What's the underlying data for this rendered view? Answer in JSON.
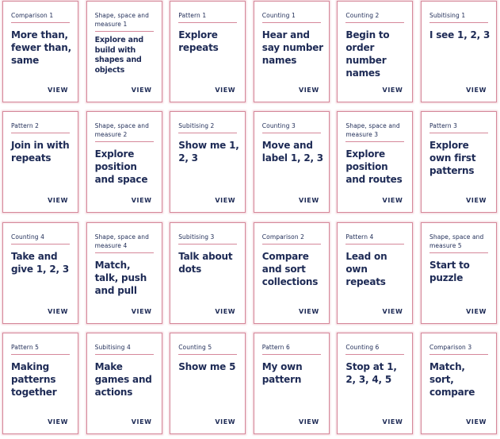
{
  "cards": [
    {
      "category": "Comparison 1",
      "title": "More than, fewer than, same",
      "action": "VIEW"
    },
    {
      "category": "Shape, space and measure 1",
      "title": "Explore and build with shapes and objects",
      "action": "VIEW"
    },
    {
      "category": "Pattern 1",
      "title": "Explore repeats",
      "action": "VIEW"
    },
    {
      "category": "Counting 1",
      "title": "Hear and say number names",
      "action": "VIEW"
    },
    {
      "category": "Counting 2",
      "title": "Begin to order number names",
      "action": "VIEW"
    },
    {
      "category": "Subitising 1",
      "title": "I see 1, 2, 3",
      "action": "VIEW"
    },
    {
      "category": "Pattern 2",
      "title": "Join in with repeats",
      "action": "VIEW"
    },
    {
      "category": "Shape, space and measure 2",
      "title": "Explore position and space",
      "action": "VIEW"
    },
    {
      "category": "Subitising 2",
      "title": "Show me 1, 2, 3",
      "action": "VIEW"
    },
    {
      "category": "Counting 3",
      "title": "Move and label 1, 2, 3",
      "action": "VIEW"
    },
    {
      "category": "Shape, space and measure 3",
      "title": "Explore position and routes",
      "action": "VIEW"
    },
    {
      "category": "Pattern 3",
      "title": "Explore own first patterns",
      "action": "VIEW"
    },
    {
      "category": "Counting 4",
      "title": "Take and give 1, 2, 3",
      "action": "VIEW"
    },
    {
      "category": "Shape, space and measure 4",
      "title": "Match, talk, push and pull",
      "action": "VIEW"
    },
    {
      "category": "Subitising 3",
      "title": "Talk about dots",
      "action": "VIEW"
    },
    {
      "category": "Comparison 2",
      "title": "Compare and sort collections",
      "action": "VIEW"
    },
    {
      "category": "Pattern 4",
      "title": "Lead on own repeats",
      "action": "VIEW"
    },
    {
      "category": "Shape, space and measure 5",
      "title": "Start to puzzle",
      "action": "VIEW"
    },
    {
      "category": "Pattern 5",
      "title": "Making patterns together",
      "action": "VIEW"
    },
    {
      "category": "Subitising 4",
      "title": "Make games and actions",
      "action": "VIEW"
    },
    {
      "category": "Counting 5",
      "title": "Show me 5",
      "action": "VIEW"
    },
    {
      "category": "Pattern 6",
      "title": "My own pattern",
      "action": "VIEW"
    },
    {
      "category": "Counting 6",
      "title": "Stop at 1, 2, 3, 4, 5",
      "action": "VIEW"
    },
    {
      "category": "Comparison 3",
      "title": "Match, sort, compare",
      "action": "VIEW"
    }
  ]
}
